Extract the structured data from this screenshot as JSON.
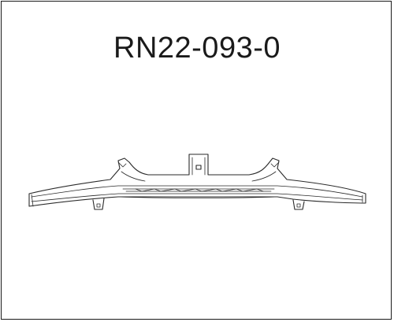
{
  "part": {
    "number": "RN22-093-0",
    "illustration": "bumper-reinforcement-bar"
  },
  "colors": {
    "line": "#2a2a2a",
    "background": "#ffffff",
    "frame": "#1a1a1a"
  }
}
